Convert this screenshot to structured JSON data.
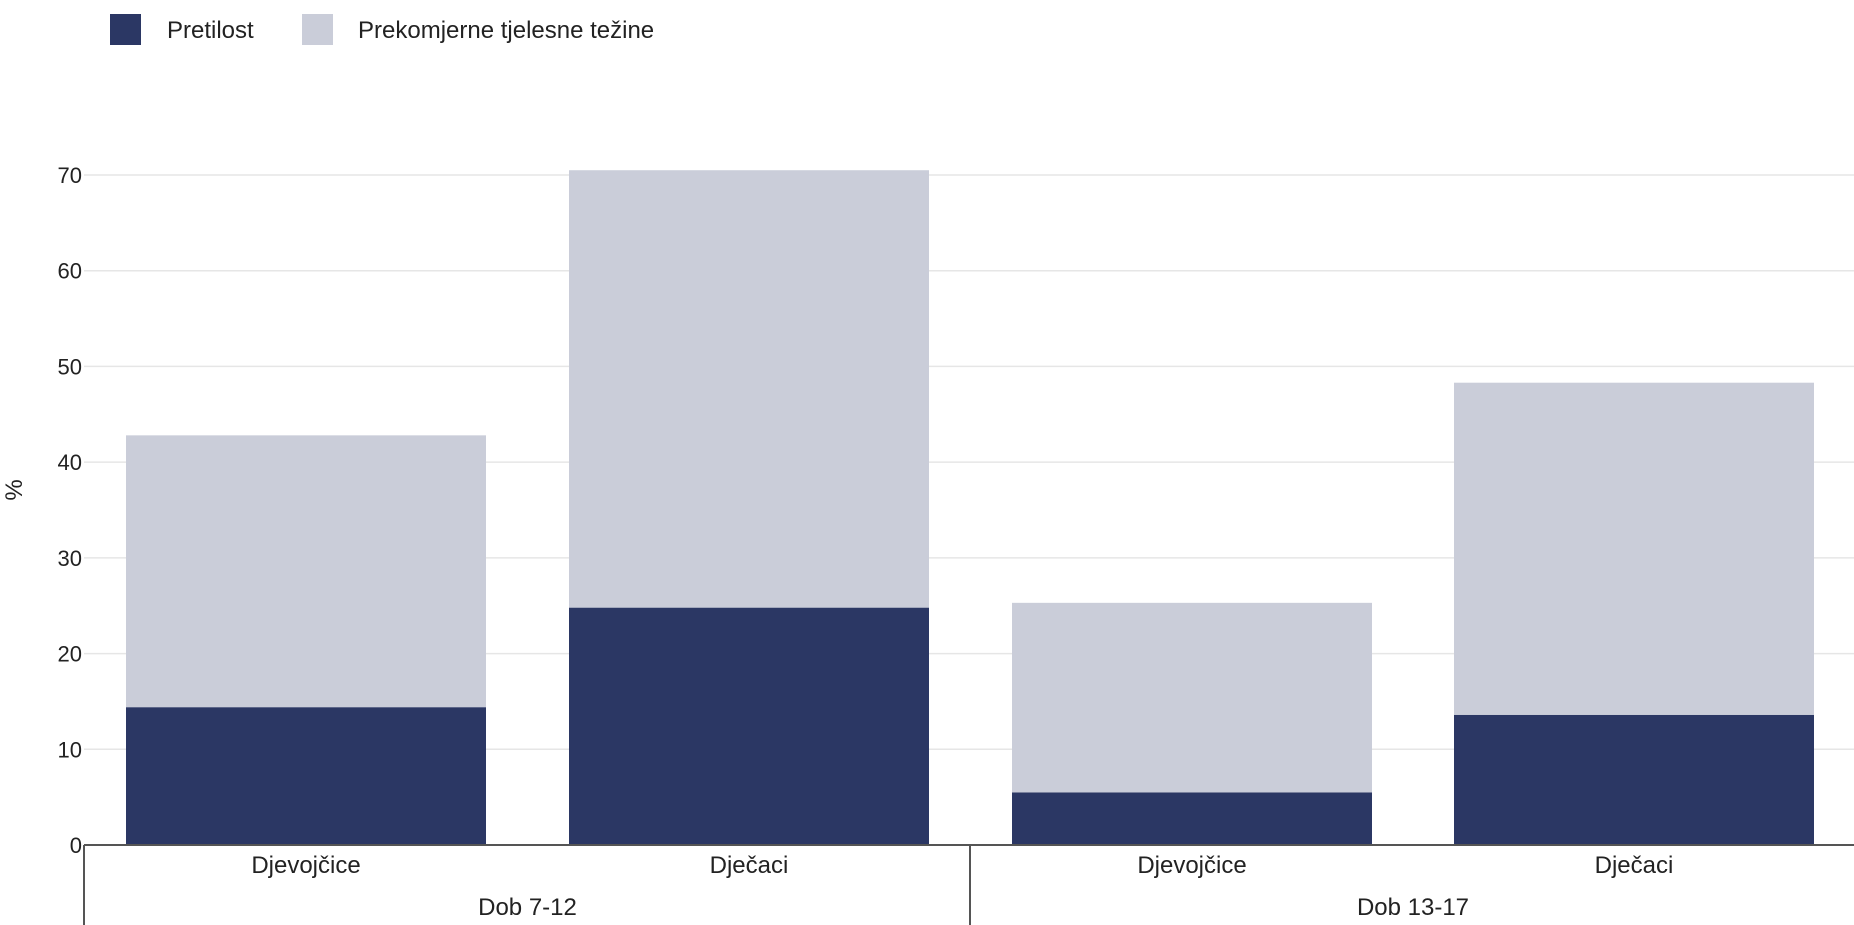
{
  "chart_data": {
    "type": "bar",
    "stacked": true,
    "categories": [
      "Djevojčice",
      "Dječaci",
      "Djevojčice",
      "Dječaci"
    ],
    "groups": [
      {
        "label": "Dob 7-12",
        "categories": [
          0,
          1
        ]
      },
      {
        "label": "Dob 13-17",
        "categories": [
          2,
          3
        ]
      }
    ],
    "series": [
      {
        "name": "Pretilost",
        "color": "#2b3764",
        "values": [
          14.4,
          24.8,
          5.5,
          13.6
        ]
      },
      {
        "name": "Prekomjerne tjelesne težine",
        "color": "#cacdd9",
        "values": [
          28.4,
          45.7,
          19.8,
          34.7
        ]
      }
    ],
    "ylabel": "%",
    "ylim": [
      0,
      70
    ],
    "yticks": [
      0,
      10,
      20,
      30,
      40,
      50,
      60,
      70
    ],
    "grid": true,
    "legend_position": "top-left"
  }
}
